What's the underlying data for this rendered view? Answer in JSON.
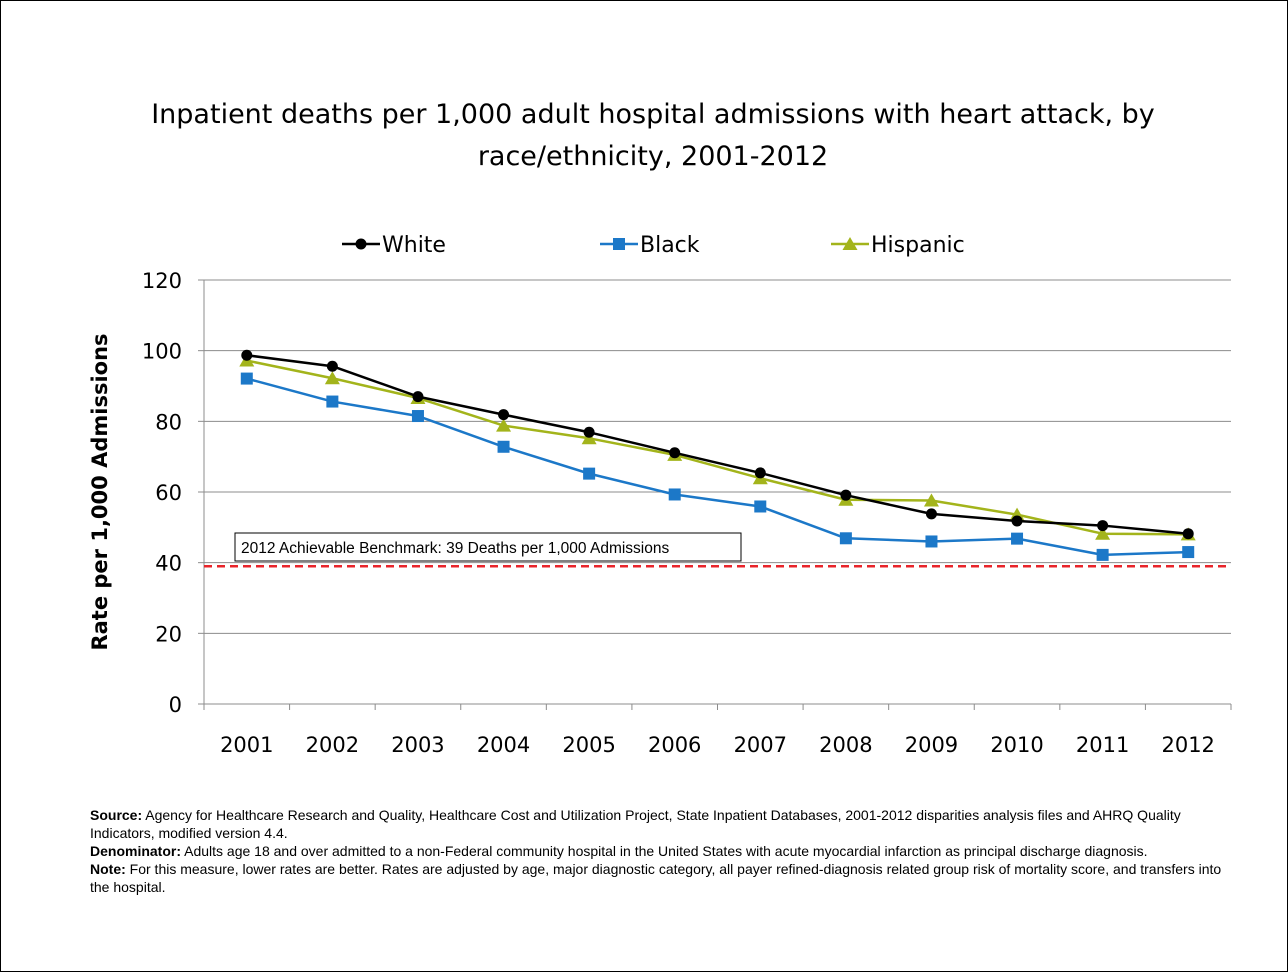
{
  "chart_data": {
    "type": "line",
    "title_lines": [
      "Inpatient deaths per 1,000 adult hospital admissions with heart attack, by",
      "race/ethnicity, 2001-2012"
    ],
    "ylabel": "Rate per 1,000 Admissions",
    "xlabel": "",
    "ylim": [
      0,
      120
    ],
    "yticks": [
      "0",
      "20",
      "40",
      "60",
      "80",
      "100",
      "120"
    ],
    "categories": [
      "2001",
      "2002",
      "2003",
      "2004",
      "2005",
      "2006",
      "2007",
      "2008",
      "2009",
      "2010",
      "2011",
      "2012"
    ],
    "grid": true,
    "legend": "top",
    "series": [
      {
        "name": "White",
        "color": "#000000",
        "marker": "circle",
        "values": [
          98.7,
          95.6,
          87.0,
          81.9,
          76.9,
          71.1,
          65.4,
          59.1,
          53.8,
          51.8,
          50.5,
          48.2
        ]
      },
      {
        "name": "Black",
        "color": "#1c78c8",
        "marker": "square",
        "values": [
          92.1,
          85.6,
          81.5,
          72.8,
          65.2,
          59.3,
          55.9,
          46.9,
          46.0,
          46.8,
          42.2,
          43.0
        ]
      },
      {
        "name": "Hispanic",
        "color": "#a3b41b",
        "marker": "triangle",
        "values": [
          97.2,
          92.2,
          86.6,
          78.8,
          75.2,
          70.5,
          63.9,
          57.8,
          57.6,
          53.6,
          48.2,
          48.0
        ]
      }
    ],
    "benchmark": {
      "value": 39,
      "label": "2012 Achievable Benchmark: 39 Deaths per 1,000 Admissions",
      "color": "#e8242a"
    }
  },
  "notes": {
    "source_label": "Source:",
    "source_text": " Agency for Healthcare Research and Quality, Healthcare Cost and Utilization Project, State Inpatient Databases, 2001-2012 disparities analysis files and AHRQ Quality Indicators, modified version 4.4.",
    "denominator_label": "Denominator:",
    "denominator_text": " Adults age 18 and over admitted to a non-Federal community hospital in the United States with acute myocardial infarction as principal discharge diagnosis.",
    "note_label": "Note:",
    "note_text": " For this measure, lower rates are better. Rates are adjusted by age, major diagnostic category, all payer refined-diagnosis related group risk of mortality score, and transfers into the hospital."
  }
}
